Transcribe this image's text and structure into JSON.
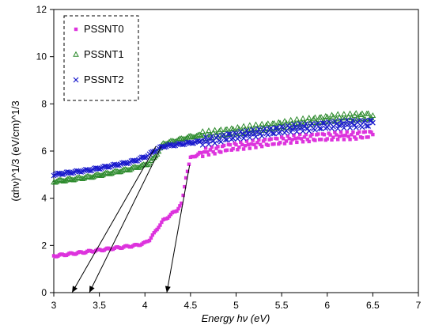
{
  "chart_data": {
    "type": "scatter",
    "xlabel": "Energy hν (eV)",
    "ylabel": "(αhν)^1/3 (eV/cm)^1/3",
    "xlim": [
      3,
      7
    ],
    "ylim": [
      0,
      12
    ],
    "x_ticks": [
      "3",
      "3.5",
      "4",
      "4.5",
      "5",
      "5.5",
      "6",
      "6.5",
      "7"
    ],
    "y_ticks": [
      "0",
      "2",
      "4",
      "6",
      "8",
      "10",
      "12"
    ],
    "grid": false,
    "legend_position": "top-left",
    "series": [
      {
        "name": "PSSNT0",
        "color": "#dd33dd",
        "marker": "square",
        "x": [
          3.0,
          3.2,
          3.4,
          3.6,
          3.8,
          3.9,
          4.0,
          4.05,
          4.1,
          4.15,
          4.2,
          4.25,
          4.3,
          4.35,
          4.4,
          4.42,
          4.45,
          4.5,
          4.55,
          4.6,
          4.7,
          4.8,
          4.9,
          5.0,
          5.1,
          5.2,
          5.3,
          5.4,
          5.5,
          5.6,
          5.7,
          5.8,
          5.9,
          6.0,
          6.1,
          6.2,
          6.3,
          6.4,
          6.5
        ],
        "y": [
          1.55,
          1.65,
          1.75,
          1.85,
          1.95,
          2.0,
          2.1,
          2.25,
          2.5,
          2.8,
          3.05,
          3.2,
          3.35,
          3.5,
          3.75,
          4.1,
          4.9,
          5.7,
          5.8,
          5.9,
          6.0,
          6.05,
          6.15,
          6.2,
          6.25,
          6.3,
          6.35,
          6.4,
          6.45,
          6.5,
          6.55,
          6.55,
          6.6,
          6.6,
          6.65,
          6.65,
          6.65,
          6.7,
          6.7
        ]
      },
      {
        "name": "PSSNT1",
        "color": "#2e8b2e",
        "marker": "triangle",
        "x": [
          3.0,
          3.2,
          3.4,
          3.6,
          3.8,
          3.9,
          4.0,
          4.05,
          4.1,
          4.15,
          4.2,
          4.3,
          4.4,
          4.5,
          4.6,
          4.7,
          4.8,
          4.9,
          5.0,
          5.1,
          5.2,
          5.3,
          5.4,
          5.5,
          5.6,
          5.7,
          5.8,
          5.9,
          6.0,
          6.1,
          6.2,
          6.3,
          6.4,
          6.5
        ],
        "y": [
          4.7,
          4.8,
          4.9,
          5.05,
          5.2,
          5.3,
          5.4,
          5.5,
          5.7,
          6.0,
          6.3,
          6.4,
          6.5,
          6.6,
          6.65,
          6.7,
          6.75,
          6.8,
          6.85,
          6.9,
          6.95,
          7.0,
          7.05,
          7.1,
          7.15,
          7.2,
          7.25,
          7.3,
          7.35,
          7.4,
          7.4,
          7.45,
          7.45,
          7.5
        ]
      },
      {
        "name": "PSSNT2",
        "color": "#1a1acc",
        "marker": "x",
        "x": [
          3.0,
          3.2,
          3.4,
          3.6,
          3.8,
          3.9,
          4.0,
          4.05,
          4.1,
          4.15,
          4.2,
          4.3,
          4.4,
          4.5,
          4.6,
          4.7,
          4.8,
          4.9,
          5.0,
          5.1,
          5.2,
          5.3,
          5.4,
          5.5,
          5.6,
          5.7,
          5.8,
          5.9,
          6.0,
          6.1,
          6.2,
          6.3,
          6.4,
          6.5
        ],
        "y": [
          5.0,
          5.1,
          5.2,
          5.35,
          5.5,
          5.6,
          5.75,
          5.85,
          6.0,
          6.1,
          6.2,
          6.25,
          6.3,
          6.35,
          6.4,
          6.45,
          6.5,
          6.6,
          6.65,
          6.7,
          6.75,
          6.8,
          6.85,
          6.9,
          6.95,
          7.0,
          7.0,
          7.05,
          7.1,
          7.1,
          7.15,
          7.15,
          7.15,
          7.2
        ]
      }
    ],
    "fit_lines": [
      {
        "x": [
          4.12,
          3.2
        ],
        "y": [
          6.2,
          0
        ]
      },
      {
        "x": [
          4.18,
          3.39
        ],
        "y": [
          6.2,
          0
        ]
      },
      {
        "x": [
          4.49,
          4.24
        ],
        "y": [
          5.4,
          0
        ]
      }
    ]
  }
}
